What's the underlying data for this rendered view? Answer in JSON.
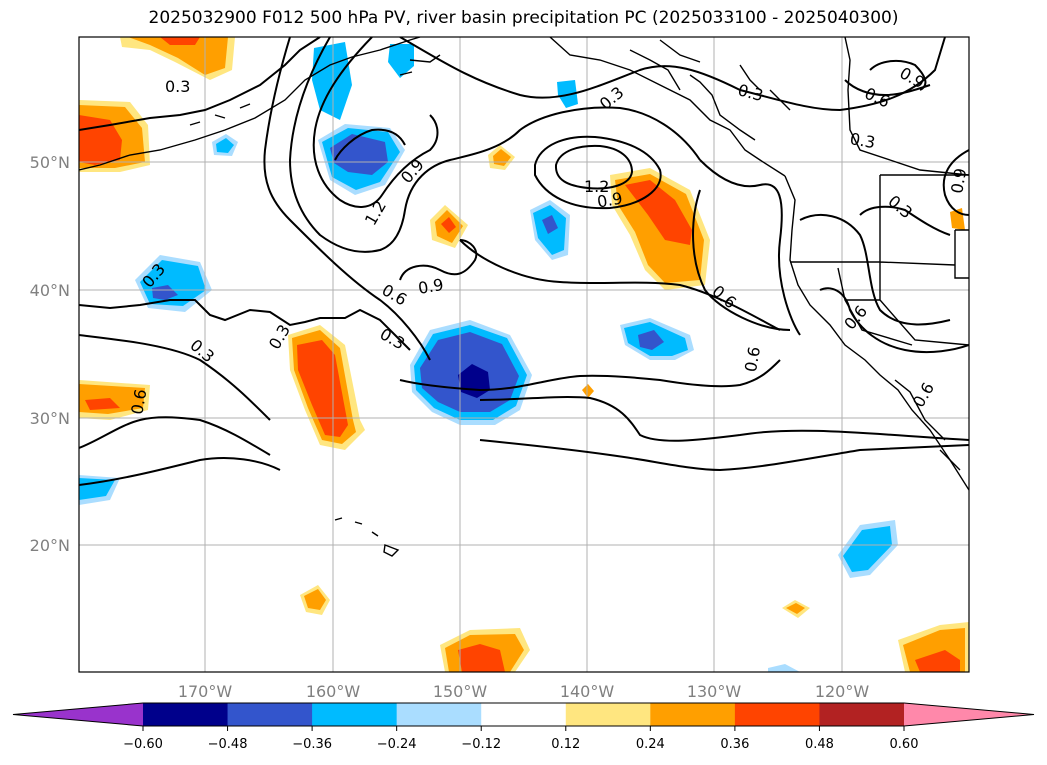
{
  "title": "2025032900 F012 500 hPa PV, river basin precipitation PC (2025033100 - 2025040300)",
  "lon_ticks": [
    "170°W",
    "160°W",
    "150°W",
    "140°W",
    "130°W",
    "120°W"
  ],
  "lat_ticks": [
    "50°N",
    "40°N",
    "30°N",
    "20°N"
  ],
  "contour_labels": [
    {
      "text": "0.3"
    },
    {
      "text": "0.9"
    },
    {
      "text": "0.6"
    },
    {
      "text": "0.3"
    },
    {
      "text": "0.3"
    },
    {
      "text": "0.9"
    },
    {
      "text": "1.2"
    },
    {
      "text": "1.2"
    },
    {
      "text": "0.9"
    },
    {
      "text": "0.9"
    },
    {
      "text": "0.6"
    },
    {
      "text": "0.3"
    },
    {
      "text": "0.3"
    },
    {
      "text": "0.3"
    },
    {
      "text": "0.3"
    },
    {
      "text": "0.3"
    },
    {
      "text": "0.6"
    },
    {
      "text": "0.6"
    },
    {
      "text": "0.6"
    },
    {
      "text": "0.6"
    },
    {
      "text": "0.3"
    },
    {
      "text": "0.9"
    },
    {
      "text": "0.3"
    },
    {
      "text": "0.6"
    }
  ],
  "colorbar": {
    "colors": [
      "#9933cc",
      "#00008b",
      "#3355cc",
      "#00bbff",
      "#aaddff",
      "#ffffff",
      "#ffe680",
      "#ff9f00",
      "#ff4400",
      "#b22222",
      "#ff88aa"
    ],
    "labels": [
      "−0.60",
      "−0.48",
      "−0.36",
      "−0.24",
      "−0.12",
      "0.12",
      "0.24",
      "0.36",
      "0.48",
      "0.60"
    ]
  },
  "colors": {
    "grid": "#b0b0b0",
    "contour": "#000000",
    "coast": "#000000"
  }
}
